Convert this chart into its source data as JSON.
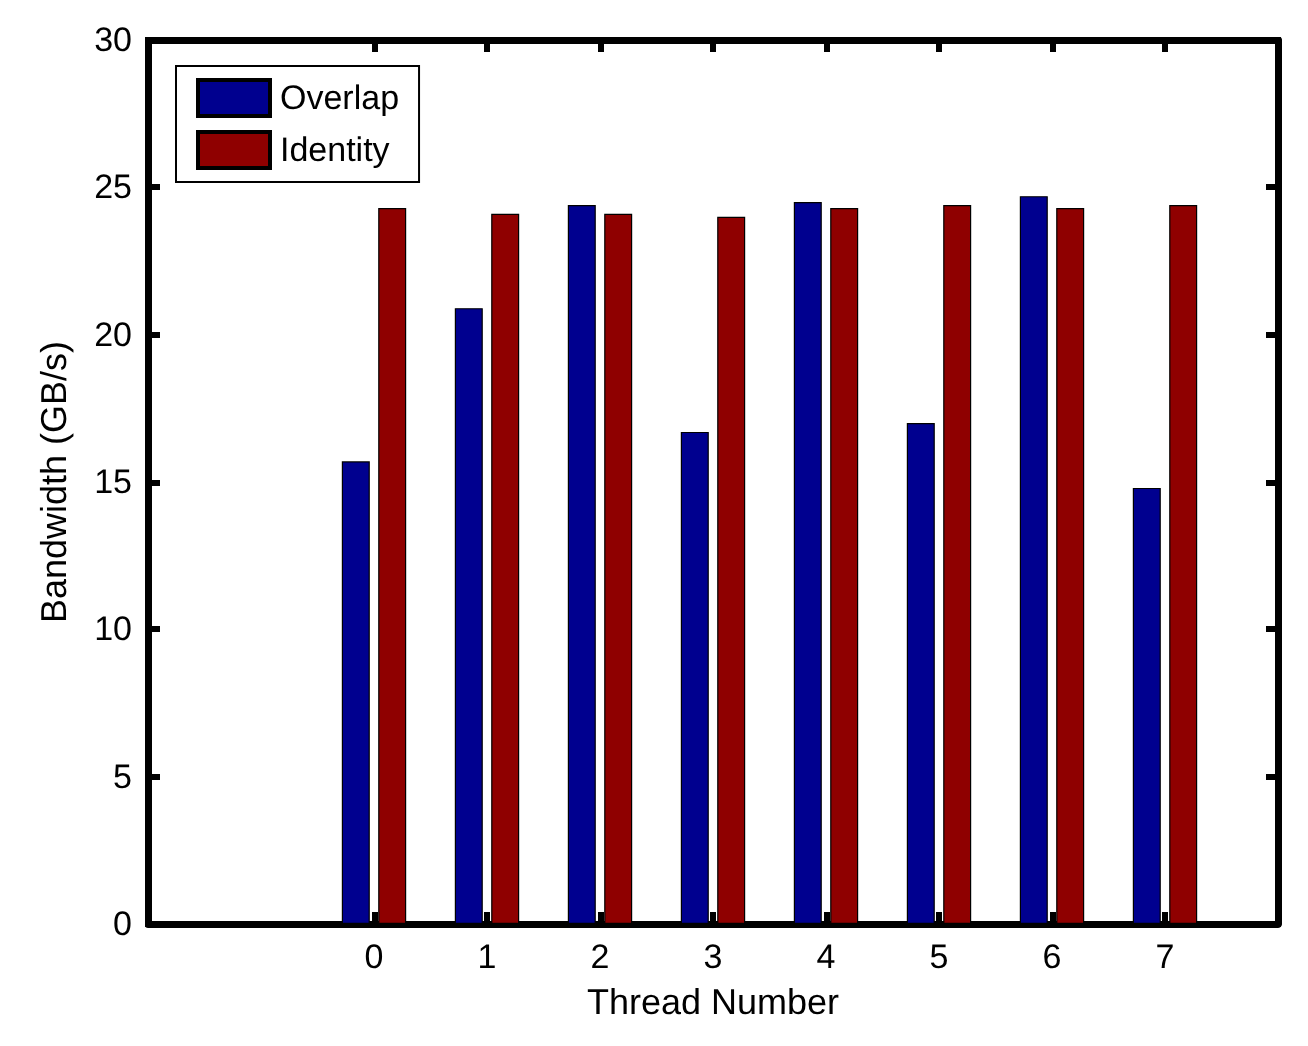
{
  "chart_data": {
    "type": "bar",
    "xlabel": "Thread Number",
    "ylabel": "Bandwidth (GB/s)",
    "x": [
      0,
      1,
      2,
      3,
      4,
      5,
      6,
      7
    ],
    "series": [
      {
        "name": "Overlap",
        "color": "#00008f",
        "values": [
          15.7,
          20.9,
          24.4,
          16.7,
          24.5,
          17.0,
          24.7,
          14.8
        ]
      },
      {
        "name": "Identity",
        "color": "#8f0000",
        "values": [
          24.3,
          24.1,
          24.1,
          24.0,
          24.3,
          24.4,
          24.3,
          24.4
        ]
      }
    ],
    "xlim": [
      -2,
      8
    ],
    "xticks": [
      0,
      1,
      2,
      3,
      4,
      5,
      6,
      7
    ],
    "ylim": [
      0,
      30
    ],
    "yticks": [
      0,
      5,
      10,
      15,
      20,
      25,
      30
    ],
    "grid": false,
    "legend": "top left"
  }
}
